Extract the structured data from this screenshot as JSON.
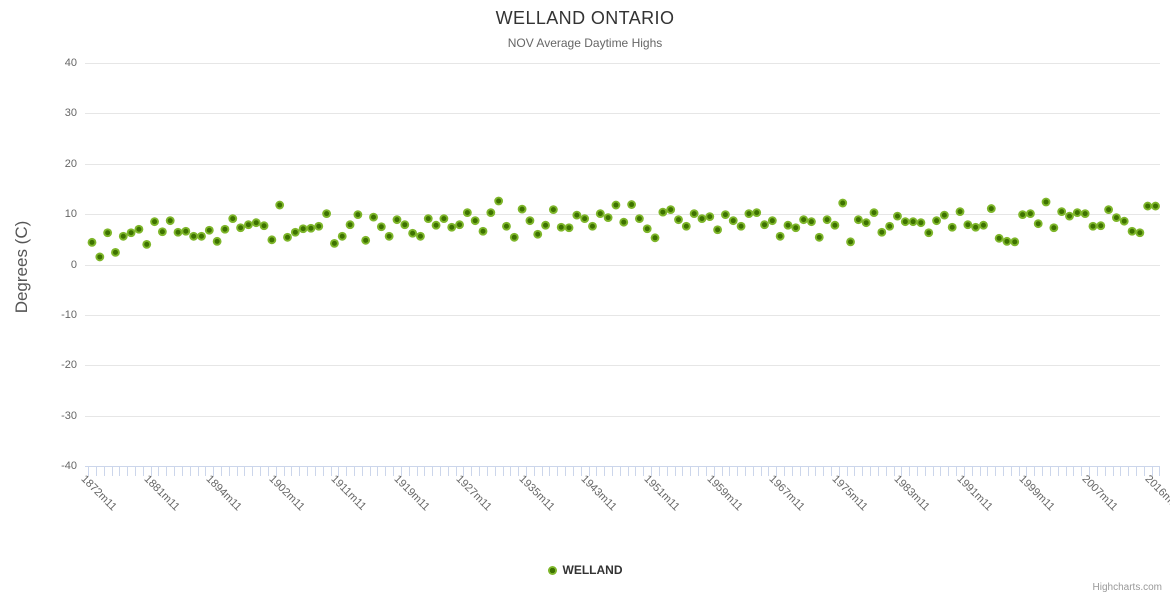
{
  "title": "WELLAND ONTARIO",
  "subtitle": "NOV Average Daytime Highs",
  "y_axis": {
    "title": "Degrees (C)",
    "ticks": [
      "40",
      "30",
      "20",
      "10",
      "0",
      "-10",
      "-20",
      "-30",
      "-40"
    ],
    "min": -40,
    "max": 40
  },
  "legend": {
    "label": "WELLAND"
  },
  "credits": "Highcharts.com",
  "colors": {
    "marker_outer": "#7eb62a",
    "marker_inner": "#3d7200",
    "grid_line": "#e6e6e6",
    "axis_line": "#ccd6eb",
    "tick_mark": "#ccd6eb",
    "label_text": "#666666",
    "title_text": "#333333"
  },
  "chart_data": {
    "type": "scatter",
    "title": "WELLAND ONTARIO",
    "subtitle": "NOV Average Daytime Highs",
    "ylabel": "Degrees (C)",
    "ylim": [
      -40,
      40
    ],
    "y_ticks": [
      40,
      30,
      20,
      10,
      0,
      -10,
      -20,
      -30,
      -40
    ],
    "grid": "horizontal",
    "legend_position": "bottom",
    "x_tick_labels": [
      "1872m11",
      "1881m11",
      "1894m11",
      "1902m11",
      "1911m11",
      "1919m11",
      "1927m11",
      "1935m11",
      "1943m11",
      "1951m11",
      "1959m11",
      "1967m11",
      "1975m11",
      "1983m11",
      "1991m11",
      "1999m11",
      "2007m11",
      "2016m…"
    ],
    "label_interval": 8,
    "series": [
      {
        "name": "WELLAND",
        "values": [
          4.4,
          1.5,
          6.3,
          2.4,
          5.6,
          6.3,
          7.0,
          4.0,
          8.5,
          6.5,
          8.7,
          6.4,
          6.6,
          5.6,
          5.6,
          6.8,
          4.6,
          7.0,
          9.1,
          7.3,
          7.9,
          8.3,
          7.7,
          4.9,
          11.8,
          5.4,
          6.4,
          7.1,
          7.2,
          7.6,
          10.1,
          4.2,
          5.6,
          7.9,
          9.9,
          4.8,
          9.4,
          7.5,
          5.6,
          8.9,
          7.9,
          6.2,
          5.6,
          9.1,
          7.8,
          9.1,
          7.4,
          7.9,
          10.3,
          8.7,
          6.6,
          10.3,
          12.6,
          7.6,
          5.4,
          11.0,
          8.7,
          6.0,
          7.8,
          10.9,
          7.4,
          7.3,
          9.8,
          9.1,
          7.6,
          10.1,
          9.3,
          11.8,
          8.4,
          11.9,
          9.1,
          7.1,
          5.3,
          10.4,
          10.9,
          8.9,
          7.6,
          10.1,
          9.1,
          9.5,
          6.9,
          9.9,
          8.7,
          7.6,
          10.1,
          10.3,
          7.9,
          8.7,
          5.6,
          7.8,
          7.3,
          8.9,
          8.5,
          5.4,
          8.9,
          7.8,
          12.2,
          4.5,
          8.9,
          8.3,
          10.3,
          6.4,
          7.6,
          9.6,
          8.5,
          8.5,
          8.3,
          6.3,
          8.7,
          9.8,
          7.4,
          10.5,
          7.9,
          7.4,
          7.8,
          11.1,
          5.2,
          4.6,
          4.5,
          9.9,
          10.1,
          8.1,
          12.4,
          7.3,
          10.5,
          9.6,
          10.3,
          10.1,
          7.6,
          7.7,
          10.9,
          9.3,
          8.6,
          6.6,
          6.3,
          11.6,
          11.6
        ]
      }
    ]
  }
}
